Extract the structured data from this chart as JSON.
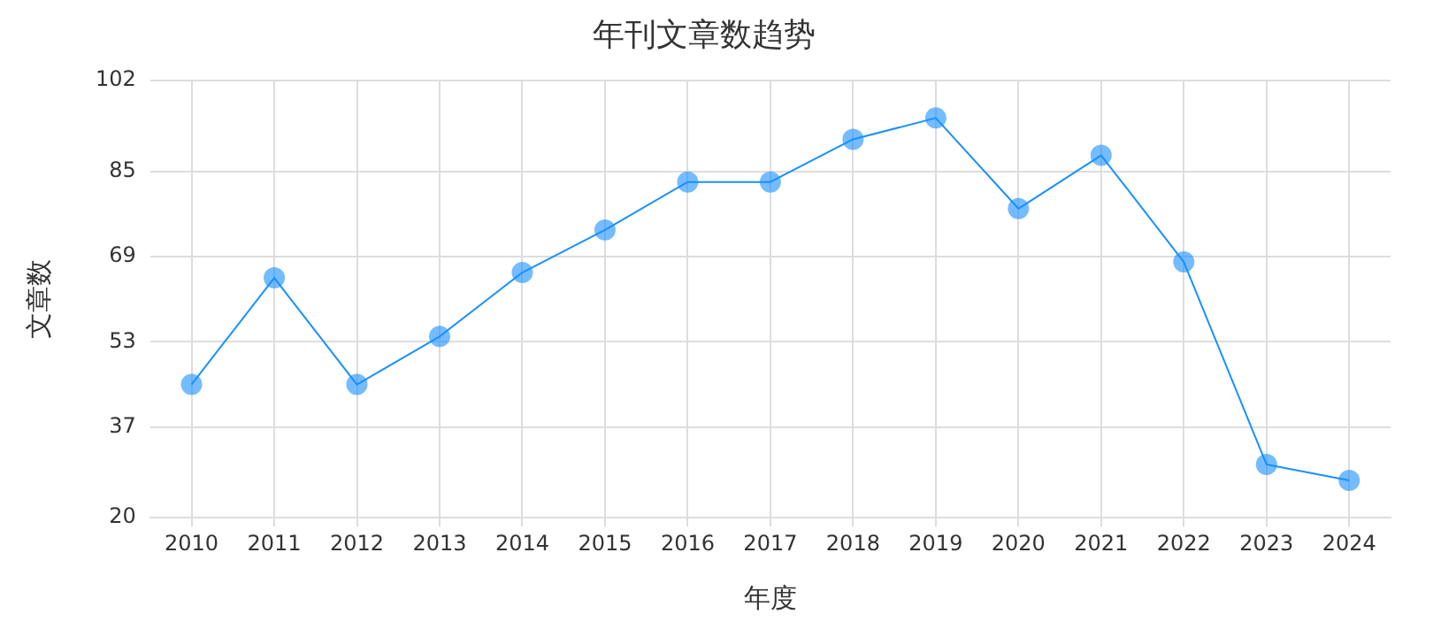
{
  "chart_data": {
    "type": "line",
    "title": "年刊文章数趋势",
    "xlabel": "年度",
    "ylabel": "文章数",
    "categories": [
      "2010",
      "2011",
      "2012",
      "2013",
      "2014",
      "2015",
      "2016",
      "2017",
      "2018",
      "2019",
      "2020",
      "2021",
      "2022",
      "2023",
      "2024"
    ],
    "series": [
      {
        "color": "#1890ff",
        "values": [
          45,
          65,
          45,
          54,
          66,
          74,
          83,
          83,
          91,
          95,
          78,
          88,
          68,
          30,
          27
        ]
      }
    ],
    "ylim": [
      20,
      102
    ],
    "yticks": [
      20,
      37,
      53,
      69,
      85,
      102
    ],
    "grid": true,
    "marker": "circle",
    "line_style": "solid"
  }
}
